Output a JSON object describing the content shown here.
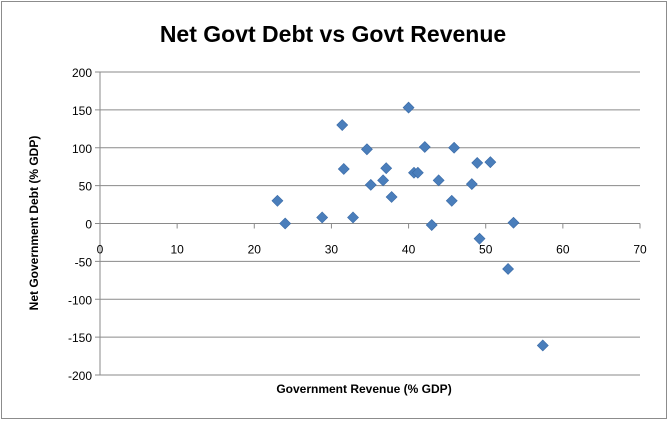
{
  "chart_data": {
    "type": "scatter",
    "title": "Net Govt Debt vs Govt Revenue",
    "xlabel": "Government Revenue (% GDP)",
    "ylabel": "Net Government Debt (% GDP)",
    "xlim": [
      0,
      70
    ],
    "ylim": [
      -200,
      200
    ],
    "x_ticks": [
      0,
      10,
      20,
      30,
      40,
      50,
      60,
      70
    ],
    "y_ticks": [
      -200,
      -150,
      -100,
      -50,
      0,
      50,
      100,
      150,
      200
    ],
    "grid": "horizontal major gridlines",
    "legend": "none",
    "marker": "diamond",
    "marker_color": "#4a7ebb",
    "points": [
      {
        "x": 23.0,
        "y": 30
      },
      {
        "x": 24.0,
        "y": 0
      },
      {
        "x": 28.8,
        "y": 8
      },
      {
        "x": 31.4,
        "y": 130
      },
      {
        "x": 31.6,
        "y": 72
      },
      {
        "x": 32.8,
        "y": 8
      },
      {
        "x": 34.6,
        "y": 98
      },
      {
        "x": 35.1,
        "y": 51
      },
      {
        "x": 36.7,
        "y": 57
      },
      {
        "x": 37.1,
        "y": 73
      },
      {
        "x": 37.8,
        "y": 35
      },
      {
        "x": 40.0,
        "y": 153
      },
      {
        "x": 40.7,
        "y": 67
      },
      {
        "x": 41.2,
        "y": 67
      },
      {
        "x": 42.1,
        "y": 101
      },
      {
        "x": 43.0,
        "y": -2
      },
      {
        "x": 43.9,
        "y": 57
      },
      {
        "x": 45.6,
        "y": 30
      },
      {
        "x": 45.9,
        "y": 100
      },
      {
        "x": 48.2,
        "y": 52
      },
      {
        "x": 48.9,
        "y": 80
      },
      {
        "x": 49.2,
        "y": -20
      },
      {
        "x": 50.6,
        "y": 81
      },
      {
        "x": 52.9,
        "y": -60
      },
      {
        "x": 53.6,
        "y": 1
      },
      {
        "x": 57.4,
        "y": -161
      }
    ]
  }
}
